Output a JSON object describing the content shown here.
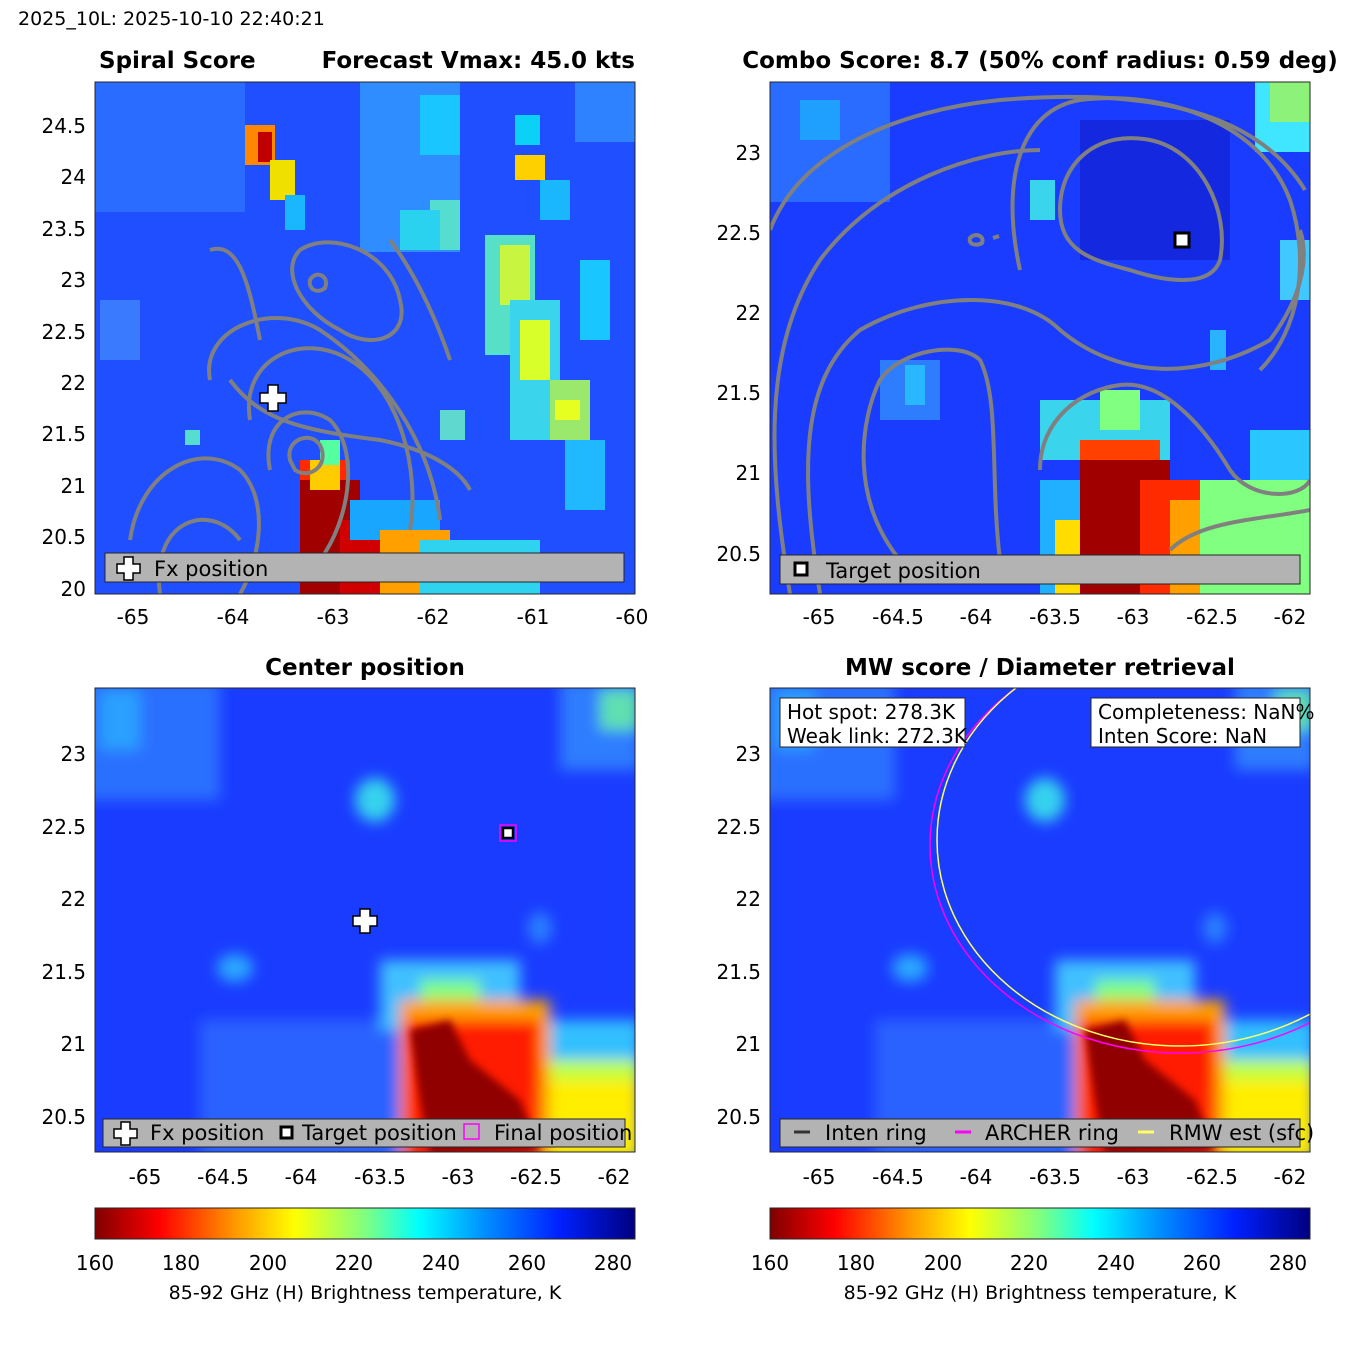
{
  "header": {
    "run_label": "2025_10L: 2025-10-10 22:40:21"
  },
  "panels": {
    "spiral": {
      "title_left": "Spiral Score",
      "title_right": "Forecast Vmax: 45.0 kts",
      "legend": [
        "Fx position"
      ]
    },
    "combo": {
      "title": "Combo Score: 8.7  (50% conf radius: 0.59 deg)",
      "legend": [
        "Target position"
      ]
    },
    "center": {
      "title": "Center position",
      "legend": [
        "Fx position",
        "Target position",
        "Final position"
      ]
    },
    "mw": {
      "title": "MW score / Diameter retrieval",
      "info_left": [
        "Hot spot: 278.3K",
        "Weak link: 272.3K"
      ],
      "info_right": [
        "Completeness: NaN%",
        "Inten Score: NaN"
      ],
      "legend": [
        "Inten ring",
        "ARCHER ring",
        "RMW est (sfc)"
      ]
    }
  },
  "colorbar": {
    "label": "85-92 GHz (H) Brightness temperature, K",
    "ticks": [
      "160",
      "180",
      "200",
      "220",
      "240",
      "260",
      "280"
    ],
    "range": [
      160,
      285
    ],
    "colormap": "jet (reversed)"
  },
  "colors": {
    "fx_marker": "#ffffff",
    "target_marker": "#000000",
    "final_marker": "#ff00ff",
    "inten_ring": "#333333",
    "archer_ring": "#ff00ff",
    "rmw_ring": "#ffff66",
    "contours": "#808080"
  },
  "chart_data": [
    {
      "type": "heatmap",
      "name": "spiral-score",
      "xlim": [
        -65.4,
        -60.0
      ],
      "ylim": [
        20.0,
        24.95
      ],
      "xticks": [
        "-65",
        "-64",
        "-63",
        "-62",
        "-61",
        "-60"
      ],
      "yticks": [
        "20",
        "20.5",
        "21",
        "21.5",
        "22",
        "22.5",
        "23",
        "23.5",
        "24",
        "24.5"
      ],
      "fx_position": {
        "lon": -63.6,
        "lat": 21.85
      },
      "grid": false
    },
    {
      "type": "heatmap",
      "name": "combo-score",
      "xlim": [
        -65.3,
        -61.85
      ],
      "ylim": [
        20.25,
        23.45
      ],
      "xticks": [
        "-65",
        "-64.5",
        "-64",
        "-63.5",
        "-63",
        "-62.5",
        "-62"
      ],
      "yticks": [
        "20.5",
        "21",
        "21.5",
        "22",
        "22.5",
        "23"
      ],
      "target_position": {
        "lon": -62.65,
        "lat": 22.45
      },
      "grid": false
    },
    {
      "type": "heatmap",
      "name": "center-position",
      "xlim": [
        -65.3,
        -61.85
      ],
      "ylim": [
        20.25,
        23.45
      ],
      "xticks": [
        "-65",
        "-64.5",
        "-64",
        "-63.5",
        "-63",
        "-62.5",
        "-62"
      ],
      "yticks": [
        "20.5",
        "21",
        "21.5",
        "22",
        "22.5",
        "23"
      ],
      "fx_position": {
        "lon": -63.6,
        "lat": 21.85
      },
      "target_position": {
        "lon": -62.65,
        "lat": 22.45
      },
      "final_position": {
        "lon": -62.65,
        "lat": 22.45
      },
      "grid": false
    },
    {
      "type": "heatmap",
      "name": "mw-score",
      "xlim": [
        -65.3,
        -61.85
      ],
      "ylim": [
        20.25,
        23.45
      ],
      "xticks": [
        "-65",
        "-64.5",
        "-64",
        "-63.5",
        "-63",
        "-62.5",
        "-62"
      ],
      "yticks": [
        "20.5",
        "21",
        "21.5",
        "22",
        "22.5",
        "23"
      ],
      "grid": false
    }
  ]
}
